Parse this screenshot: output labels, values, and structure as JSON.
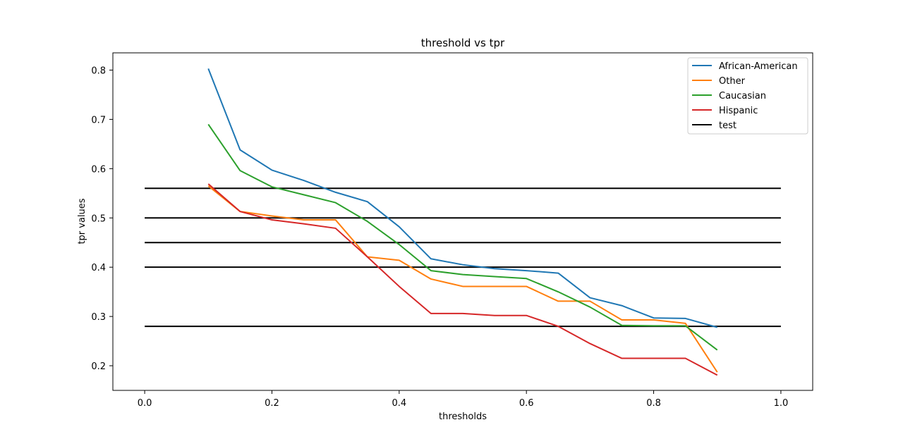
{
  "chart_data": {
    "type": "line",
    "title": "threshold vs tpr",
    "xlabel": "thresholds",
    "ylabel": "tpr values",
    "xlim": [
      -0.05,
      1.05
    ],
    "ylim": [
      0.15,
      0.835
    ],
    "xticks": [
      0.0,
      0.2,
      0.4,
      0.6,
      0.8,
      1.0
    ],
    "xtick_labels": [
      "0.0",
      "0.2",
      "0.4",
      "0.6",
      "0.8",
      "1.0"
    ],
    "yticks": [
      0.2,
      0.3,
      0.4,
      0.5,
      0.6,
      0.7,
      0.8
    ],
    "ytick_labels": [
      "0.2",
      "0.3",
      "0.4",
      "0.5",
      "0.6",
      "0.7",
      "0.8"
    ],
    "grid": false,
    "legend_position": "top-right",
    "x": [
      0.1,
      0.15,
      0.2,
      0.25,
      0.3,
      0.35,
      0.4,
      0.45,
      0.5,
      0.55,
      0.6,
      0.65,
      0.7,
      0.75,
      0.8,
      0.85,
      0.9
    ],
    "series": [
      {
        "name": "African-American",
        "color": "#1f77b4",
        "values": [
          0.803,
          0.638,
          0.597,
          0.576,
          0.552,
          0.533,
          0.482,
          0.417,
          0.405,
          0.397,
          0.393,
          0.388,
          0.338,
          0.322,
          0.297,
          0.296,
          0.278
        ]
      },
      {
        "name": "Other",
        "color": "#ff7f0e",
        "values": [
          0.565,
          0.513,
          0.504,
          0.496,
          0.496,
          0.421,
          0.414,
          0.376,
          0.361,
          0.361,
          0.361,
          0.331,
          0.331,
          0.293,
          0.293,
          0.286,
          0.187
        ]
      },
      {
        "name": "Caucasian",
        "color": "#2ca02c",
        "values": [
          0.69,
          0.596,
          0.563,
          0.547,
          0.531,
          0.493,
          0.446,
          0.393,
          0.385,
          0.381,
          0.377,
          0.35,
          0.319,
          0.282,
          0.281,
          0.281,
          0.232
        ]
      },
      {
        "name": "Hispanic",
        "color": "#d62728",
        "values": [
          0.569,
          0.513,
          0.496,
          0.488,
          0.479,
          0.421,
          0.361,
          0.306,
          0.306,
          0.302,
          0.302,
          0.28,
          0.245,
          0.215,
          0.215,
          0.215,
          0.181
        ]
      }
    ],
    "reference_lines": {
      "name": "test",
      "color": "#000000",
      "x_range": [
        0.0,
        1.0
      ],
      "y_values": [
        0.56,
        0.5,
        0.45,
        0.4,
        0.28
      ]
    }
  }
}
